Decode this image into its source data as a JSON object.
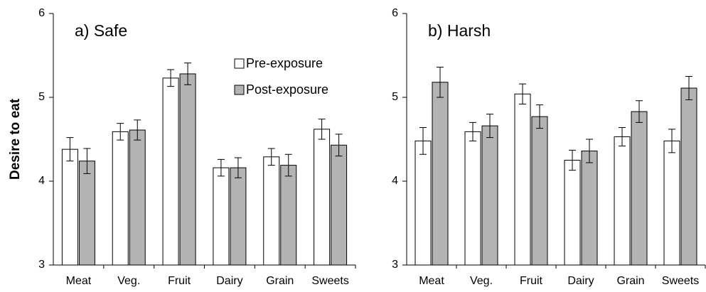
{
  "chart_data": [
    {
      "type": "bar",
      "title": "a) Safe",
      "y_label": "Desire to eat",
      "categories": [
        "Meat",
        "Veg.",
        "Fruit",
        "Dairy",
        "Grain",
        "Sweets"
      ],
      "series": [
        {
          "name": "Pre-exposure",
          "color": "#ffffff",
          "values": [
            4.38,
            4.59,
            5.23,
            4.16,
            4.29,
            4.62
          ],
          "errors": [
            0.14,
            0.1,
            0.1,
            0.1,
            0.1,
            0.12
          ]
        },
        {
          "name": "Post-exposure",
          "color": "#b3b3b3",
          "values": [
            4.24,
            4.61,
            5.28,
            4.16,
            4.19,
            4.43
          ],
          "errors": [
            0.15,
            0.12,
            0.13,
            0.12,
            0.13,
            0.13
          ]
        }
      ],
      "ylim": [
        3,
        6
      ],
      "yticks": [
        3,
        4,
        5,
        6
      ]
    },
    {
      "type": "bar",
      "title": "b) Harsh",
      "categories": [
        "Meat",
        "Veg.",
        "Fruit",
        "Dairy",
        "Grain",
        "Sweets"
      ],
      "series": [
        {
          "color": "#ffffff",
          "values": [
            4.48,
            4.59,
            5.04,
            4.25,
            4.53,
            4.48
          ],
          "errors": [
            0.16,
            0.11,
            0.12,
            0.12,
            0.11,
            0.14
          ]
        },
        {
          "color": "#b3b3b3",
          "values": [
            5.18,
            4.66,
            4.77,
            4.36,
            4.83,
            5.11
          ],
          "errors": [
            0.18,
            0.14,
            0.14,
            0.14,
            0.13,
            0.14
          ]
        }
      ],
      "ylim": [
        3,
        6
      ],
      "yticks": [
        3,
        4,
        5,
        6
      ]
    }
  ]
}
